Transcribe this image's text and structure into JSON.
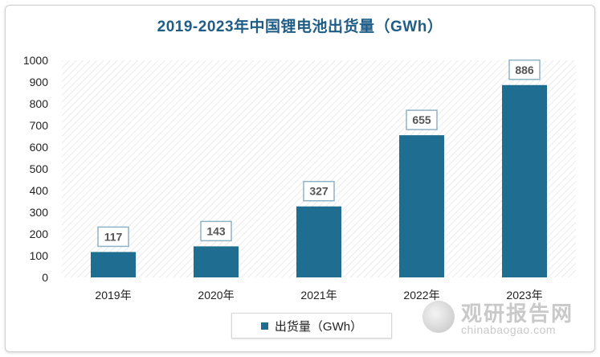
{
  "chart_data": {
    "type": "bar",
    "title": "2019-2023年中国锂电池出货量（GWh）",
    "categories": [
      "2019年",
      "2020年",
      "2021年",
      "2022年",
      "2023年"
    ],
    "series": [
      {
        "name": "出货量（GWh）",
        "values": [
          117,
          143,
          327,
          655,
          886
        ]
      }
    ],
    "ylim": [
      0,
      1000
    ],
    "yticks": [
      0,
      100,
      200,
      300,
      400,
      500,
      600,
      700,
      800,
      900,
      1000
    ],
    "grid": false,
    "legend_position": "bottom",
    "data_labels": true,
    "colors": {
      "bar": "#1f6e91",
      "title": "#1f5d86"
    }
  },
  "legend": {
    "label": "出货量（GWh）"
  },
  "watermark": {
    "name": "观研报告网",
    "url": "chinabaogao.com"
  }
}
